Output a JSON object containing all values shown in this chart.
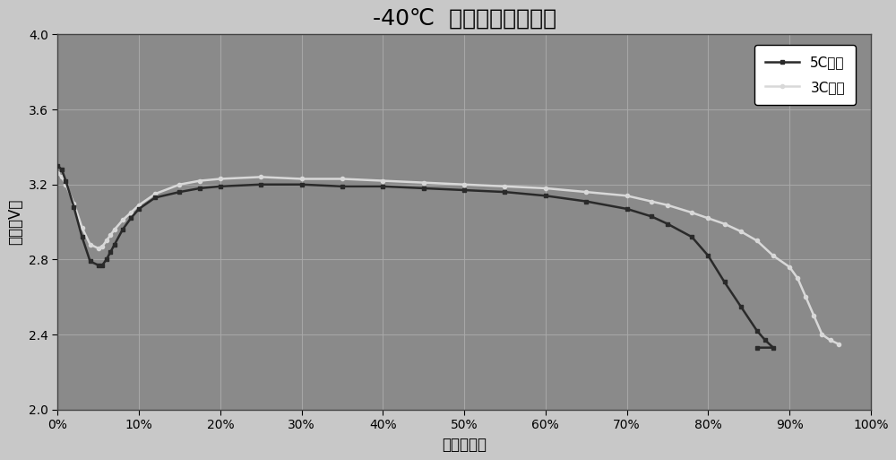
{
  "title": "-40℃  不同倍率放电曲线",
  "xlabel": "容量百分比",
  "ylabel": "电压（V）",
  "xlim": [
    0,
    1.0
  ],
  "ylim": [
    2.0,
    4.0
  ],
  "yticks": [
    2.0,
    2.4,
    2.8,
    3.2,
    3.6,
    4.0
  ],
  "xticks": [
    0,
    0.1,
    0.2,
    0.3,
    0.4,
    0.5,
    0.6,
    0.7,
    0.8,
    0.9,
    1.0
  ],
  "fig_bg_color": "#c8c8c8",
  "plot_bg_color": "#8a8a8a",
  "title_fontsize": 18,
  "label_fontsize": 12,
  "tick_fontsize": 10,
  "legend_5C_label": "5C放电",
  "legend_3C_label": "3C放电",
  "line_5C_color": "#2a2a2a",
  "line_3C_color": "#d8d8d8",
  "5C_x": [
    0.0,
    0.005,
    0.01,
    0.02,
    0.03,
    0.04,
    0.05,
    0.055,
    0.06,
    0.065,
    0.07,
    0.08,
    0.09,
    0.1,
    0.12,
    0.15,
    0.175,
    0.2,
    0.25,
    0.3,
    0.35,
    0.4,
    0.45,
    0.5,
    0.55,
    0.6,
    0.65,
    0.7,
    0.73,
    0.75,
    0.78,
    0.8,
    0.82,
    0.84,
    0.86,
    0.87,
    0.88,
    0.86
  ],
  "5C_y": [
    3.3,
    3.28,
    3.22,
    3.08,
    2.92,
    2.79,
    2.77,
    2.77,
    2.8,
    2.84,
    2.88,
    2.96,
    3.02,
    3.07,
    3.13,
    3.16,
    3.18,
    3.19,
    3.2,
    3.2,
    3.19,
    3.19,
    3.18,
    3.17,
    3.16,
    3.14,
    3.11,
    3.07,
    3.03,
    2.99,
    2.92,
    2.82,
    2.68,
    2.55,
    2.42,
    2.37,
    2.33,
    2.33
  ],
  "3C_x": [
    0.0,
    0.005,
    0.01,
    0.02,
    0.03,
    0.04,
    0.05,
    0.055,
    0.06,
    0.065,
    0.07,
    0.08,
    0.09,
    0.1,
    0.12,
    0.15,
    0.175,
    0.2,
    0.25,
    0.3,
    0.35,
    0.4,
    0.45,
    0.5,
    0.55,
    0.6,
    0.65,
    0.7,
    0.73,
    0.75,
    0.78,
    0.8,
    0.82,
    0.84,
    0.86,
    0.88,
    0.9,
    0.91,
    0.92,
    0.93,
    0.94,
    0.95,
    0.96
  ],
  "3C_y": [
    3.26,
    3.24,
    3.2,
    3.1,
    2.97,
    2.88,
    2.86,
    2.87,
    2.9,
    2.93,
    2.96,
    3.01,
    3.05,
    3.09,
    3.15,
    3.2,
    3.22,
    3.23,
    3.24,
    3.23,
    3.23,
    3.22,
    3.21,
    3.2,
    3.19,
    3.18,
    3.16,
    3.14,
    3.11,
    3.09,
    3.05,
    3.02,
    2.99,
    2.95,
    2.9,
    2.82,
    2.76,
    2.7,
    2.6,
    2.5,
    2.4,
    2.37,
    2.35
  ]
}
